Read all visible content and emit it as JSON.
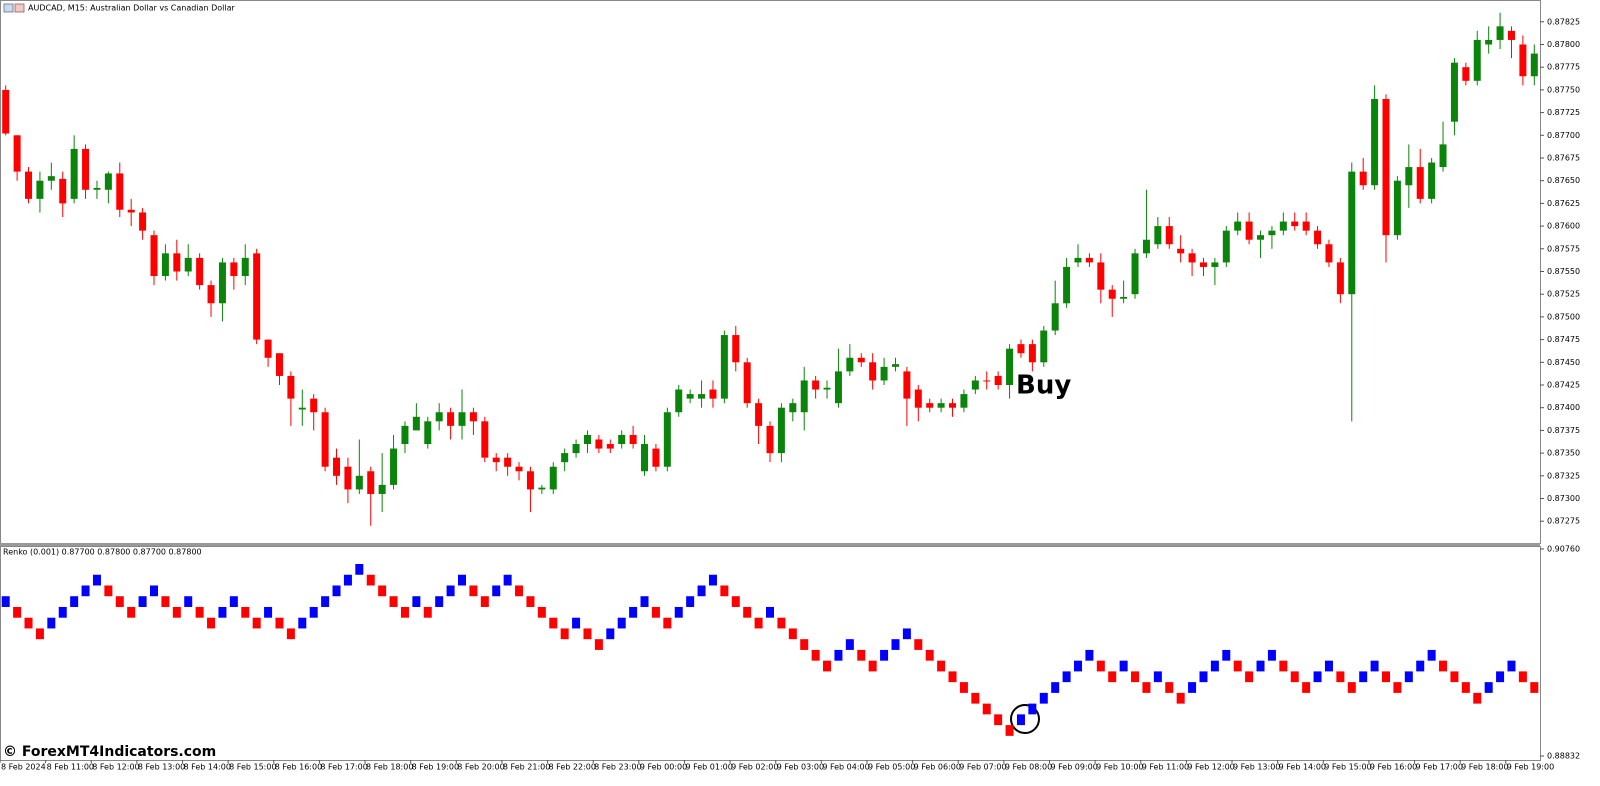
{
  "chart_data": [
    {
      "type": "candlestick",
      "title": "AUDCAD, M15:  Australian Dollar vs Canadian Dollar",
      "annotation": "Buy",
      "up_color": "#0b840b",
      "down_color": "#ff0000",
      "ylim": [
        0.87251,
        0.87849
      ],
      "yticks": [
        {
          "value": 0.87825,
          "label": "0.87825"
        },
        {
          "value": 0.878,
          "label": "0.87800"
        },
        {
          "value": 0.87775,
          "label": "0.87775"
        },
        {
          "value": 0.8775,
          "label": "0.87750"
        },
        {
          "value": 0.87725,
          "label": "0.87725"
        },
        {
          "value": 0.877,
          "label": "0.87700"
        },
        {
          "value": 0.87675,
          "label": "0.87675"
        },
        {
          "value": 0.8765,
          "label": "0.87650"
        },
        {
          "value": 0.87625,
          "label": "0.87625"
        },
        {
          "value": 0.876,
          "label": "0.87600"
        },
        {
          "value": 0.87575,
          "label": "0.87575"
        },
        {
          "value": 0.8755,
          "label": "0.87550"
        },
        {
          "value": 0.87525,
          "label": "0.87525"
        },
        {
          "value": 0.875,
          "label": "0.87500"
        },
        {
          "value": 0.87475,
          "label": "0.87475"
        },
        {
          "value": 0.8745,
          "label": "0.87450"
        },
        {
          "value": 0.87425,
          "label": "0.87425"
        },
        {
          "value": 0.874,
          "label": "0.87400"
        },
        {
          "value": 0.87375,
          "label": "0.87375"
        },
        {
          "value": 0.8735,
          "label": "0.87350"
        },
        {
          "value": 0.87325,
          "label": "0.87325"
        },
        {
          "value": 0.873,
          "label": "0.87300"
        },
        {
          "value": 0.87275,
          "label": "0.87275"
        }
      ],
      "xticks": [
        {
          "value": 0,
          "label": "8 Feb 2024"
        },
        {
          "value": 4,
          "label": "8 Feb 11:00"
        },
        {
          "value": 8,
          "label": "8 Feb 12:00"
        },
        {
          "value": 12,
          "label": "8 Feb 13:00"
        },
        {
          "value": 16,
          "label": "8 Feb 14:00"
        },
        {
          "value": 20,
          "label": "8 Feb 15:00"
        },
        {
          "value": 24,
          "label": "8 Feb 16:00"
        },
        {
          "value": 28,
          "label": "8 Feb 17:00"
        },
        {
          "value": 32,
          "label": "8 Feb 18:00"
        },
        {
          "value": 36,
          "label": "8 Feb 19:00"
        },
        {
          "value": 40,
          "label": "8 Feb 20:00"
        },
        {
          "value": 44,
          "label": "8 Feb 21:00"
        },
        {
          "value": 48,
          "label": "8 Feb 22:00"
        },
        {
          "value": 52,
          "label": "8 Feb 23:00"
        },
        {
          "value": 56,
          "label": "9 Feb 00:00"
        },
        {
          "value": 60,
          "label": "9 Feb 01:00"
        },
        {
          "value": 64,
          "label": "9 Feb 02:00"
        },
        {
          "value": 68,
          "label": "9 Feb 03:00"
        },
        {
          "value": 72,
          "label": "9 Feb 04:00"
        },
        {
          "value": 76,
          "label": "9 Feb 05:00"
        },
        {
          "value": 80,
          "label": "9 Feb 06:00"
        },
        {
          "value": 84,
          "label": "9 Feb 07:00"
        },
        {
          "value": 88,
          "label": "9 Feb 08:00"
        },
        {
          "value": 92,
          "label": "9 Feb 09:00"
        },
        {
          "value": 96,
          "label": "9 Feb 10:00"
        },
        {
          "value": 100,
          "label": "9 Feb 11:00"
        },
        {
          "value": 104,
          "label": "9 Feb 12:00"
        },
        {
          "value": 108,
          "label": "9 Feb 13:00"
        },
        {
          "value": 112,
          "label": "9 Feb 14:00"
        },
        {
          "value": 116,
          "label": "9 Feb 15:00"
        },
        {
          "value": 120,
          "label": "9 Feb 16:00"
        },
        {
          "value": 124,
          "label": "9 Feb 17:00"
        },
        {
          "value": 128,
          "label": "9 Feb 18:00"
        },
        {
          "value": 132,
          "label": "9 Feb 19:00"
        }
      ],
      "open": [
        0.8775,
        0.877,
        0.8766,
        0.8763,
        0.8765,
        0.87652,
        0.8763,
        0.87685,
        0.8764,
        0.8764,
        0.87658,
        0.87618,
        0.87615,
        0.8759,
        0.87545,
        0.8757,
        0.8755,
        0.87565,
        0.87535,
        0.87515,
        0.8756,
        0.87545,
        0.8757,
        0.87475,
        0.8746,
        0.87435,
        0.87398,
        0.8741,
        0.87395,
        0.87345,
        0.87335,
        0.8731,
        0.8733,
        0.87305,
        0.87315,
        0.8736,
        0.87375,
        0.8736,
        0.87385,
        0.87395,
        0.8738,
        0.87395,
        0.87385,
        0.87345,
        0.87345,
        0.87335,
        0.8733,
        0.8731,
        0.8731,
        0.8734,
        0.8735,
        0.8736,
        0.87365,
        0.8736,
        0.8736,
        0.8737,
        0.8733,
        0.87355,
        0.87335,
        0.87395,
        0.8741,
        0.8741,
        0.8742,
        0.8741,
        0.8748,
        0.8745,
        0.87405,
        0.8738,
        0.8735,
        0.87395,
        0.87395,
        0.8743,
        0.8742,
        0.87405,
        0.8744,
        0.87455,
        0.8745,
        0.8743,
        0.87445,
        0.8744,
        0.8742,
        0.87405,
        0.874,
        0.87405,
        0.874,
        0.8742,
        0.8743,
        0.87435,
        0.87425,
        0.8747,
        0.8747,
        0.8745,
        0.87485,
        0.87515,
        0.8756,
        0.87565,
        0.8756,
        0.8753,
        0.8752,
        0.87525,
        0.8757,
        0.8758,
        0.876,
        0.87575,
        0.8757,
        0.8756,
        0.87555,
        0.8756,
        0.87595,
        0.87605,
        0.87585,
        0.8759,
        0.87595,
        0.87605,
        0.87605,
        0.87595,
        0.8758,
        0.8756,
        0.87525,
        0.8766,
        0.87645,
        0.8774,
        0.8759,
        0.87645,
        0.87665,
        0.8763,
        0.87665,
        0.87715,
        0.87775,
        0.8776,
        0.878,
        0.87805,
        0.87815,
        0.878,
        0.87765
      ],
      "high": [
        0.87755,
        0.877,
        0.87665,
        0.8766,
        0.8767,
        0.8766,
        0.877,
        0.8769,
        0.8765,
        0.8766,
        0.8767,
        0.8763,
        0.8762,
        0.87595,
        0.8758,
        0.87585,
        0.8758,
        0.8757,
        0.8754,
        0.87565,
        0.87565,
        0.8758,
        0.87575,
        0.87475,
        0.8746,
        0.8744,
        0.8742,
        0.87415,
        0.874,
        0.87355,
        0.87345,
        0.87365,
        0.87335,
        0.8735,
        0.8737,
        0.87385,
        0.87405,
        0.8739,
        0.87405,
        0.874,
        0.8742,
        0.874,
        0.8739,
        0.8735,
        0.8735,
        0.8734,
        0.87335,
        0.87315,
        0.8734,
        0.87355,
        0.87365,
        0.87375,
        0.8737,
        0.87365,
        0.87375,
        0.8738,
        0.8737,
        0.8736,
        0.874,
        0.87425,
        0.8742,
        0.8743,
        0.8743,
        0.87485,
        0.8749,
        0.87455,
        0.8741,
        0.87385,
        0.87405,
        0.8741,
        0.87445,
        0.87435,
        0.8743,
        0.87465,
        0.8747,
        0.8746,
        0.8746,
        0.87455,
        0.87455,
        0.87445,
        0.87425,
        0.8741,
        0.8741,
        0.8741,
        0.8742,
        0.87435,
        0.8744,
        0.8744,
        0.8747,
        0.87475,
        0.87475,
        0.8749,
        0.8754,
        0.87565,
        0.8758,
        0.8757,
        0.8757,
        0.87535,
        0.8754,
        0.87575,
        0.8764,
        0.8761,
        0.8761,
        0.8759,
        0.87575,
        0.87565,
        0.87565,
        0.876,
        0.87615,
        0.87615,
        0.87595,
        0.876,
        0.87615,
        0.87615,
        0.87615,
        0.876,
        0.87585,
        0.87565,
        0.8767,
        0.87675,
        0.87755,
        0.87745,
        0.87655,
        0.8769,
        0.87685,
        0.87675,
        0.87715,
        0.87785,
        0.8778,
        0.87815,
        0.8782,
        0.87835,
        0.8782,
        0.8781,
        0.878
      ],
      "low": [
        0.877,
        0.8765,
        0.87625,
        0.87615,
        0.8764,
        0.8761,
        0.87625,
        0.8763,
        0.8763,
        0.87625,
        0.8761,
        0.876,
        0.87585,
        0.87535,
        0.8754,
        0.8754,
        0.87545,
        0.8753,
        0.875,
        0.87495,
        0.8753,
        0.87535,
        0.8747,
        0.87445,
        0.87425,
        0.8738,
        0.8738,
        0.87375,
        0.8733,
        0.87315,
        0.87295,
        0.87305,
        0.8727,
        0.87285,
        0.8731,
        0.8735,
        0.87375,
        0.87355,
        0.87375,
        0.87365,
        0.87365,
        0.8737,
        0.8734,
        0.8733,
        0.87325,
        0.8732,
        0.87285,
        0.87305,
        0.87305,
        0.8733,
        0.87345,
        0.8735,
        0.8735,
        0.8735,
        0.87355,
        0.87355,
        0.87325,
        0.8733,
        0.8733,
        0.8739,
        0.87405,
        0.874,
        0.874,
        0.87405,
        0.8744,
        0.874,
        0.8736,
        0.8734,
        0.8734,
        0.87385,
        0.87375,
        0.8741,
        0.8741,
        0.874,
        0.87435,
        0.87445,
        0.8742,
        0.87425,
        0.8744,
        0.8738,
        0.87385,
        0.87395,
        0.87395,
        0.8739,
        0.87395,
        0.87415,
        0.8742,
        0.8742,
        0.8741,
        0.87455,
        0.8744,
        0.87445,
        0.8748,
        0.8751,
        0.87555,
        0.87555,
        0.87515,
        0.875,
        0.87515,
        0.8752,
        0.87565,
        0.87575,
        0.87575,
        0.8756,
        0.87545,
        0.87545,
        0.87535,
        0.87555,
        0.8759,
        0.8758,
        0.87565,
        0.87575,
        0.8759,
        0.87595,
        0.8759,
        0.87575,
        0.87555,
        0.87515,
        0.87385,
        0.8764,
        0.8764,
        0.8756,
        0.87585,
        0.8762,
        0.87625,
        0.87625,
        0.8766,
        0.877,
        0.87755,
        0.87755,
        0.8779,
        0.87795,
        0.87785,
        0.87755,
        0.87755
      ],
      "close": [
        0.87702,
        0.8766,
        0.8763,
        0.8765,
        0.87655,
        0.87625,
        0.87685,
        0.8764,
        0.87642,
        0.87658,
        0.87618,
        0.87615,
        0.87595,
        0.87545,
        0.8757,
        0.8755,
        0.87565,
        0.87535,
        0.87515,
        0.8756,
        0.87545,
        0.87565,
        0.87475,
        0.87455,
        0.87435,
        0.8741,
        0.874,
        0.87395,
        0.87335,
        0.87325,
        0.8731,
        0.87325,
        0.87305,
        0.87315,
        0.87355,
        0.8738,
        0.8739,
        0.87385,
        0.87395,
        0.8738,
        0.87395,
        0.87385,
        0.87345,
        0.8734,
        0.87335,
        0.8733,
        0.8731,
        0.87312,
        0.87335,
        0.8735,
        0.8736,
        0.8737,
        0.87355,
        0.87355,
        0.8737,
        0.8736,
        0.8736,
        0.87335,
        0.87395,
        0.8742,
        0.87415,
        0.87415,
        0.8741,
        0.8748,
        0.8745,
        0.87405,
        0.8738,
        0.8735,
        0.874,
        0.87405,
        0.8743,
        0.8742,
        0.87422,
        0.8744,
        0.87455,
        0.8745,
        0.8743,
        0.87445,
        0.87448,
        0.8741,
        0.874,
        0.874,
        0.87405,
        0.874,
        0.87415,
        0.8743,
        0.8743,
        0.87425,
        0.87465,
        0.8746,
        0.8745,
        0.87485,
        0.87515,
        0.87555,
        0.87565,
        0.8756,
        0.8753,
        0.8752,
        0.87522,
        0.8757,
        0.87585,
        0.876,
        0.8758,
        0.8757,
        0.8756,
        0.87555,
        0.8756,
        0.87595,
        0.87605,
        0.87585,
        0.8759,
        0.87595,
        0.87605,
        0.876,
        0.87595,
        0.8758,
        0.8756,
        0.87525,
        0.8766,
        0.87645,
        0.8774,
        0.8759,
        0.8765,
        0.87665,
        0.8763,
        0.8767,
        0.8769,
        0.8778,
        0.8776,
        0.87805,
        0.87805,
        0.8782,
        0.87805,
        0.87765,
        0.8779
      ]
    },
    {
      "type": "renko",
      "title": "Renko (0.001) 0.87700 0.87800 0.87700 0.87800",
      "brick_size": 0.001,
      "first_up": true,
      "up_color": "#0000ff",
      "down_color": "#ff0000",
      "ylim": [
        0.88795,
        0.90797
      ],
      "yticks": [
        {
          "value": 0.9076,
          "label": "0.90760"
        },
        {
          "value": 0.88832,
          "label": "0.88832"
        }
      ],
      "values": [
        0.9032,
        0.9022,
        0.9012,
        0.9002,
        0.9012,
        0.9022,
        0.9032,
        0.9042,
        0.9052,
        0.9042,
        0.9032,
        0.9022,
        0.9032,
        0.9042,
        0.9032,
        0.9022,
        0.9032,
        0.9022,
        0.9012,
        0.9022,
        0.9032,
        0.9022,
        0.9012,
        0.9022,
        0.9012,
        0.9002,
        0.9012,
        0.9022,
        0.9032,
        0.9042,
        0.9052,
        0.9062,
        0.9052,
        0.9042,
        0.9032,
        0.9022,
        0.9032,
        0.9022,
        0.9032,
        0.9042,
        0.9052,
        0.9042,
        0.9032,
        0.9042,
        0.9052,
        0.9042,
        0.9032,
        0.9022,
        0.9012,
        0.9002,
        0.9012,
        0.9002,
        0.8992,
        0.9002,
        0.9012,
        0.9022,
        0.9032,
        0.9022,
        0.9012,
        0.9022,
        0.9032,
        0.9042,
        0.9052,
        0.9042,
        0.9032,
        0.9022,
        0.9012,
        0.9022,
        0.9012,
        0.9002,
        0.8992,
        0.8982,
        0.8972,
        0.8982,
        0.8992,
        0.8982,
        0.8972,
        0.8982,
        0.8992,
        0.9002,
        0.8992,
        0.8982,
        0.8972,
        0.8962,
        0.8952,
        0.8942,
        0.8932,
        0.8922,
        0.8912,
        0.8922,
        0.8932,
        0.8942,
        0.8952,
        0.8962,
        0.8972,
        0.8982,
        0.8972,
        0.8962,
        0.8972,
        0.8962,
        0.8952,
        0.8962,
        0.8952,
        0.8942,
        0.8952,
        0.8962,
        0.8972,
        0.8982,
        0.8972,
        0.8962,
        0.8972,
        0.8982,
        0.8972,
        0.8962,
        0.8952,
        0.8962,
        0.8972,
        0.8962,
        0.8952,
        0.8962,
        0.8972,
        0.8962,
        0.8952,
        0.8962,
        0.8972,
        0.8982,
        0.8972,
        0.8962,
        0.8952,
        0.8942,
        0.8952,
        0.8962,
        0.8972,
        0.8962,
        0.8952
      ]
    }
  ],
  "watermark": "© ForexMT4Indicators.com"
}
